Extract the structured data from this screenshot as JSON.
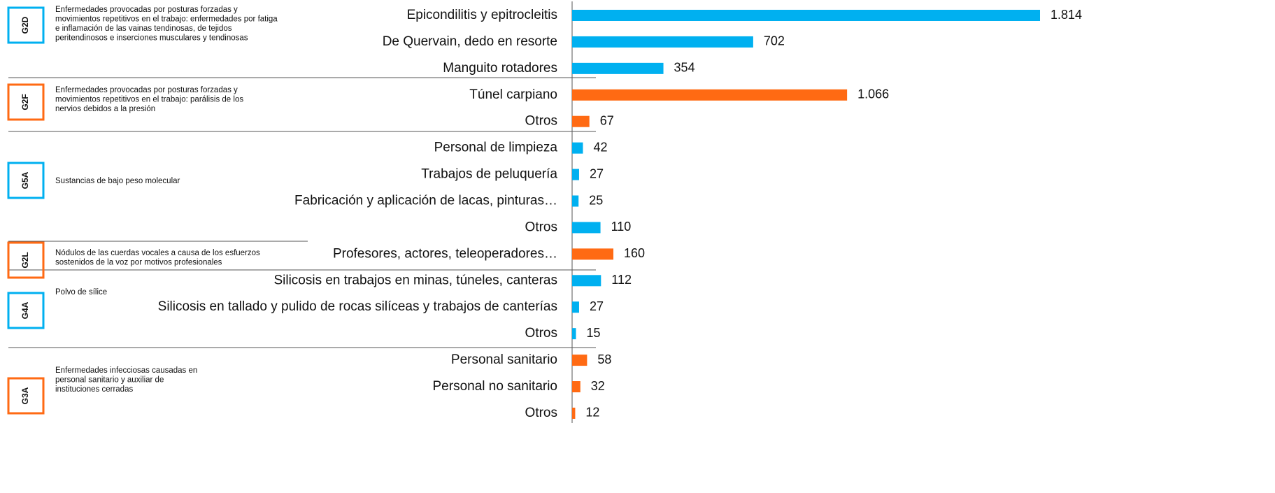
{
  "chart_data": {
    "type": "bar",
    "orientation": "horizontal",
    "xlim": [
      0,
      2500
    ],
    "groups": [
      {
        "code": "G2D",
        "color": "#00b0f0",
        "description": [
          "Enfermedades provocadas por posturas forzadas y",
          "movimientos repetitivos en el trabajo: enfermedades por fatiga",
          "e inflamación de las vainas tendinosas, de tejidos",
          "peritendinosos e inserciones musculares y tendinosas"
        ],
        "categories": [
          "Epicondilitis y epitrocleitis",
          "De Quervain, dedo en resorte",
          "Manguito rotadores"
        ],
        "values": [
          1814,
          702,
          354
        ],
        "value_labels": [
          "1.814",
          "702",
          "354"
        ]
      },
      {
        "code": "G2F",
        "color": "#ff6a13",
        "description": [
          "Enfermedades provocadas por posturas forzadas y",
          "movimientos repetitivos en el trabajo: parálisis de los",
          "nervios debidos a la presión"
        ],
        "categories": [
          "Túnel carpiano",
          "Otros"
        ],
        "values": [
          1066,
          67
        ],
        "value_labels": [
          "1.066",
          "67"
        ]
      },
      {
        "code": "G5A",
        "color": "#00b0f0",
        "description": [
          "Sustancias de bajo peso molecular"
        ],
        "categories": [
          "Personal de limpieza",
          "Trabajos de peluquería",
          "Fabricación y aplicación de lacas, pinturas…",
          "Otros"
        ],
        "values": [
          42,
          27,
          25,
          110
        ],
        "value_labels": [
          "42",
          "27",
          "25",
          "110"
        ]
      },
      {
        "code": "G2L",
        "color": "#ff6a13",
        "description": [
          "Nódulos de las cuerdas vocales a causa de los esfuerzos",
          "sostenidos de la voz por motivos profesionales"
        ],
        "categories": [
          "Profesores, actores, teleoperadores…"
        ],
        "values": [
          160
        ],
        "value_labels": [
          "160"
        ]
      },
      {
        "code": "G4A",
        "color": "#00b0f0",
        "description": [
          "Polvo de sílice"
        ],
        "categories": [
          "Silicosis en trabajos en minas, túneles, canteras",
          "Silicosis en tallado y pulido de rocas silíceas y trabajos de canterías",
          "Otros"
        ],
        "values": [
          112,
          27,
          15
        ],
        "value_labels": [
          "112",
          "27",
          "15"
        ]
      },
      {
        "code": "G3A",
        "color": "#ff6a13",
        "description": [
          "Enfermedades infecciosas causadas en",
          "personal sanitario y auxiliar de",
          "instituciones cerradas"
        ],
        "categories": [
          "Personal sanitario",
          "Personal no sanitario",
          "Otros"
        ],
        "values": [
          58,
          32,
          12
        ],
        "value_labels": [
          "58",
          "32",
          "12"
        ]
      }
    ]
  }
}
